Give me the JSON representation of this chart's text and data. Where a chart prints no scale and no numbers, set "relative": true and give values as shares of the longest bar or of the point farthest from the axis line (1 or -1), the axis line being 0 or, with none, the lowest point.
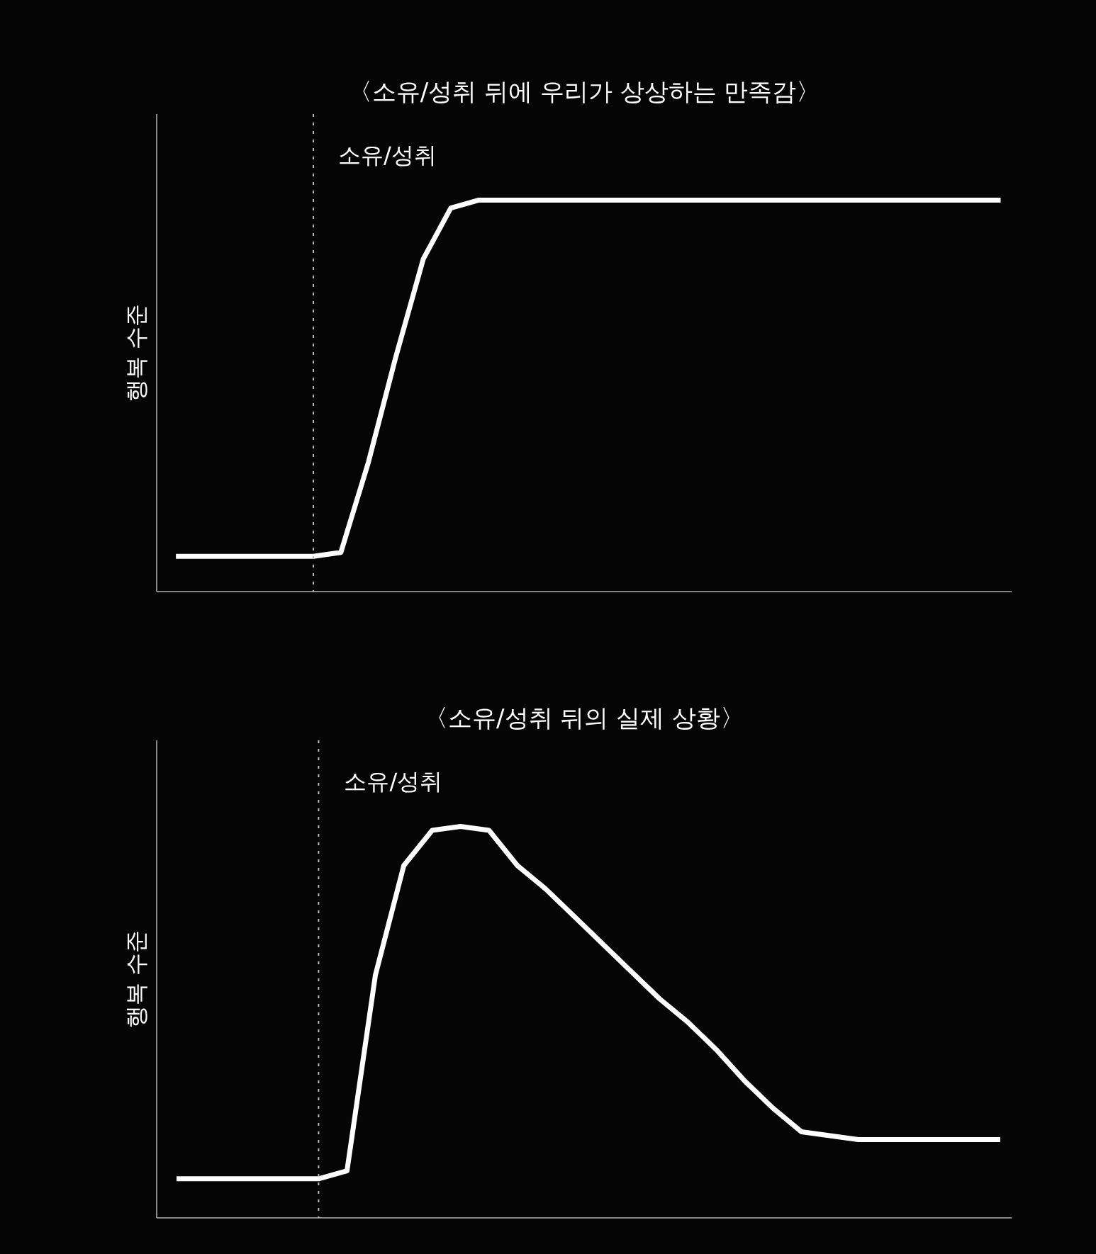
{
  "chart_data": [
    {
      "type": "line",
      "title": "〈소유/성취 뒤에 우리가 상상하는 만족감〉",
      "ylabel": "행복 수준",
      "relative": true,
      "marker": "none",
      "line_style": "solid",
      "categories": [
        null,
        null,
        null,
        null,
        null,
        null,
        null,
        null,
        null,
        null,
        null,
        null,
        null,
        null,
        null,
        null,
        null,
        null,
        null,
        null,
        null,
        null,
        null,
        null,
        null,
        null,
        null,
        null,
        null,
        null,
        null
      ],
      "series": [
        {
          "color": "#ffffff",
          "values": [
            0.09,
            0.09,
            0.09,
            0.09,
            0.09,
            0.09,
            0.1,
            0.33,
            0.6,
            0.85,
            0.98,
            1,
            1,
            1,
            1,
            1,
            1,
            1,
            1,
            1,
            1,
            1,
            1,
            1,
            1,
            1,
            1,
            1,
            1,
            1,
            1
          ]
        }
      ],
      "annotations": [
        "소유/성취"
      ]
    },
    {
      "type": "line",
      "title": "〈소유/성취 뒤의 실제 상황〉",
      "ylabel": "행복 수준",
      "relative": true,
      "marker": "none",
      "line_style": "solid",
      "categories": [
        null,
        null,
        null,
        null,
        null,
        null,
        null,
        null,
        null,
        null,
        null,
        null,
        null,
        null,
        null,
        null,
        null,
        null,
        null,
        null,
        null,
        null,
        null,
        null,
        null,
        null,
        null,
        null,
        null,
        null
      ],
      "series": [
        {
          "color": "#ffffff",
          "values": [
            0.1,
            0.1,
            0.1,
            0.1,
            0.1,
            0.1,
            0.12,
            0.62,
            0.9,
            0.99,
            1,
            0.99,
            0.9,
            0.84,
            0.77,
            0.7,
            0.63,
            0.56,
            0.5,
            0.43,
            0.35,
            0.28,
            0.22,
            0.21,
            0.2,
            0.2,
            0.2,
            0.2,
            0.2,
            0.2
          ]
        }
      ],
      "annotations": [
        "소유/성취"
      ]
    }
  ]
}
